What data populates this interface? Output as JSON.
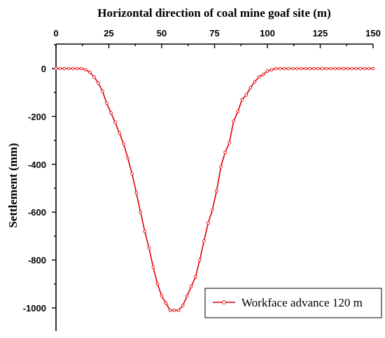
{
  "chart_data": {
    "type": "line",
    "xlabel": "Horizontal direction of coal mine goaf site (m)",
    "ylabel": "Settlement (mm)",
    "xlim": [
      0,
      150
    ],
    "ylim": [
      -1100,
      100
    ],
    "x_axis_position": "top",
    "x_ticks": [
      0,
      25,
      50,
      75,
      100,
      125,
      150
    ],
    "y_ticks": [
      0,
      -200,
      -400,
      -600,
      -800,
      -1000
    ],
    "x_tick_labels": [
      "0",
      "25",
      "50",
      "75",
      "100",
      "125",
      "150"
    ],
    "y_tick_labels": [
      "0",
      "-200",
      "-400",
      "-600",
      "-800",
      "-1000"
    ],
    "grid": false,
    "legend_position": "bottom-right",
    "series": [
      {
        "name": "Workface advance 120 m",
        "color": "#e00000",
        "marker": "circle",
        "x": [
          0,
          2,
          4,
          6,
          8,
          10,
          12,
          14,
          16,
          18,
          20,
          22,
          24,
          26,
          28,
          30,
          32,
          34,
          36,
          38,
          40,
          42,
          44,
          46,
          48,
          50,
          52,
          54,
          56,
          58,
          60,
          62,
          64,
          66,
          68,
          70,
          72,
          74,
          76,
          78,
          80,
          82,
          84,
          86,
          88,
          90,
          92,
          94,
          96,
          98,
          100,
          102,
          104,
          106,
          108,
          110,
          112,
          114,
          116,
          118,
          120,
          122,
          124,
          126,
          128,
          130,
          132,
          134,
          136,
          138,
          140,
          142,
          144,
          146,
          148,
          150
        ],
        "y": [
          0,
          0,
          0,
          0,
          0,
          0,
          0,
          -5,
          -15,
          -35,
          -60,
          -95,
          -145,
          -185,
          -225,
          -270,
          -315,
          -375,
          -440,
          -520,
          -600,
          -680,
          -750,
          -830,
          -900,
          -950,
          -980,
          -1010,
          -1010,
          -1010,
          -990,
          -950,
          -910,
          -870,
          -800,
          -720,
          -645,
          -590,
          -510,
          -410,
          -350,
          -310,
          -220,
          -180,
          -130,
          -110,
          -80,
          -55,
          -35,
          -25,
          -10,
          -5,
          0,
          0,
          0,
          0,
          0,
          0,
          0,
          0,
          0,
          0,
          0,
          0,
          0,
          0,
          0,
          0,
          0,
          0,
          0,
          0,
          0,
          0,
          0,
          0
        ]
      }
    ]
  }
}
